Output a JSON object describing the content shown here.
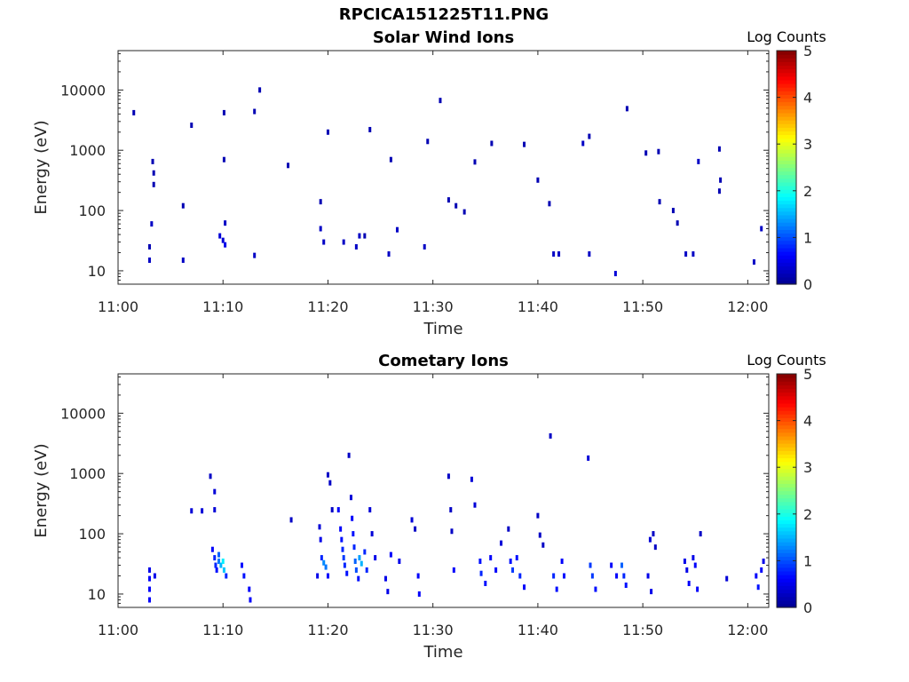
{
  "figure_title": "RPCICA151225T11.PNG",
  "colors": {
    "colormap": [
      "#00008f",
      "#0000ff",
      "#0080ff",
      "#00ffff",
      "#80ff80",
      "#ffff00",
      "#ff8000",
      "#ff0000",
      "#800000"
    ]
  },
  "chart_data": [
    {
      "type": "heatmap",
      "title": "Solar Wind Ions",
      "xlabel": "Time",
      "ylabel": "Energy (eV)",
      "y_scale": "log",
      "xlim": [
        "11:00",
        "12:02"
      ],
      "ylim": [
        6,
        45000
      ],
      "x_ticks": [
        "11:00",
        "11:10",
        "11:20",
        "11:30",
        "11:40",
        "11:50",
        "12:00"
      ],
      "y_ticks": [
        "10",
        "100",
        "1000",
        "10000"
      ],
      "colorbar": {
        "label": "Log Counts",
        "range": [
          0,
          5
        ],
        "ticks": [
          "0",
          "1",
          "2",
          "3",
          "4",
          "5"
        ]
      },
      "grid": false,
      "points": [
        [
          "11:01.5",
          4200,
          0.2
        ],
        [
          "11:03",
          25,
          0.2
        ],
        [
          "11:03",
          15,
          0.3
        ],
        [
          "11:03.3",
          650,
          0.2
        ],
        [
          "11:03.4",
          420,
          0.2
        ],
        [
          "11:03.4",
          270,
          0.2
        ],
        [
          "11:03.2",
          60,
          0.3
        ],
        [
          "11:06.2",
          15,
          0.3
        ],
        [
          "11:06.2",
          120,
          0.2
        ],
        [
          "11:07",
          2600,
          0.2
        ],
        [
          "11:09.7",
          38,
          0.4
        ],
        [
          "11:10",
          32,
          0.4
        ],
        [
          "11:10.2",
          27,
          0.5
        ],
        [
          "11:10.2",
          62,
          0.3
        ],
        [
          "11:10.1",
          4200,
          0.2
        ],
        [
          "11:10.1",
          700,
          0.2
        ],
        [
          "11:13",
          4400,
          0.2
        ],
        [
          "11:13",
          18,
          0.3
        ],
        [
          "11:13.5",
          10000,
          0.2
        ],
        [
          "11:16.2",
          560,
          0.2
        ],
        [
          "11:19.3",
          140,
          0.2
        ],
        [
          "11:19.3",
          50,
          0.3
        ],
        [
          "11:19.6",
          30,
          0.3
        ],
        [
          "11:20",
          2000,
          0.2
        ],
        [
          "11:21.5",
          30,
          0.3
        ],
        [
          "11:22.7",
          25,
          0.3
        ],
        [
          "11:23",
          38,
          0.3
        ],
        [
          "11:23.5",
          38,
          0.2
        ],
        [
          "11:24",
          2200,
          0.2
        ],
        [
          "11:25.8",
          19,
          0.3
        ],
        [
          "11:26",
          700,
          0.2
        ],
        [
          "11:26.6",
          48,
          0.3
        ],
        [
          "11:29.2",
          25,
          0.3
        ],
        [
          "11:29.5",
          1400,
          0.2
        ],
        [
          "11:30.7",
          6700,
          0.2
        ],
        [
          "11:31.5",
          150,
          0.2
        ],
        [
          "11:32.2",
          120,
          0.2
        ],
        [
          "11:33",
          95,
          0.2
        ],
        [
          "11:34",
          640,
          0.2
        ],
        [
          "11:35.6",
          1300,
          0.2
        ],
        [
          "11:38.7",
          1250,
          0.2
        ],
        [
          "11:40",
          320,
          0.2
        ],
        [
          "11:41.1",
          130,
          0.2
        ],
        [
          "11:41.5",
          19,
          0.3
        ],
        [
          "11:42",
          19,
          0.3
        ],
        [
          "11:44.3",
          1300,
          0.3
        ],
        [
          "11:44.9",
          1700,
          0.2
        ],
        [
          "11:44.9",
          19,
          0.3
        ],
        [
          "11:47.4",
          9,
          0.4
        ],
        [
          "11:48.5",
          4900,
          0.2
        ],
        [
          "11:50.3",
          900,
          0.2
        ],
        [
          "11:51.5",
          950,
          0.2
        ],
        [
          "11:51.6",
          140,
          0.2
        ],
        [
          "11:52.9",
          100,
          0.2
        ],
        [
          "11:53.3",
          62,
          0.2
        ],
        [
          "11:54.1",
          19,
          0.3
        ],
        [
          "11:54.8",
          19,
          0.3
        ],
        [
          "11:55.3",
          650,
          0.3
        ],
        [
          "11:57.3",
          1050,
          0.2
        ],
        [
          "11:57.4",
          320,
          0.2
        ],
        [
          "11:57.3",
          210,
          0.2
        ],
        [
          "12:00.6",
          14,
          0.3
        ],
        [
          "12:01.3",
          50,
          0.3
        ]
      ]
    },
    {
      "type": "heatmap",
      "title": "Cometary Ions",
      "xlabel": "Time",
      "ylabel": "Energy (eV)",
      "y_scale": "log",
      "xlim": [
        "11:00",
        "12:02"
      ],
      "ylim": [
        6,
        45000
      ],
      "x_ticks": [
        "11:00",
        "11:10",
        "11:20",
        "11:30",
        "11:40",
        "11:50",
        "12:00"
      ],
      "y_ticks": [
        "10",
        "100",
        "1000",
        "10000"
      ],
      "colorbar": {
        "label": "Log Counts",
        "range": [
          0,
          5
        ],
        "ticks": [
          "0",
          "1",
          "2",
          "3",
          "4",
          "5"
        ]
      },
      "grid": false,
      "points": [
        [
          "11:03",
          25,
          0.5
        ],
        [
          "11:03",
          18,
          0.6
        ],
        [
          "11:03",
          12,
          0.6
        ],
        [
          "11:03",
          8,
          0.6
        ],
        [
          "11:03.5",
          20,
          0.5
        ],
        [
          "11:07",
          240,
          0.4
        ],
        [
          "11:08",
          240,
          0.4
        ],
        [
          "11:08.8",
          900,
          0.3
        ],
        [
          "11:09.2",
          500,
          0.4
        ],
        [
          "11:09.2",
          250,
          0.4
        ],
        [
          "11:09",
          55,
          0.6
        ],
        [
          "11:09.2",
          40,
          0.8
        ],
        [
          "11:09.3",
          30,
          0.8
        ],
        [
          "11:09.4",
          25,
          0.7
        ],
        [
          "11:09.6",
          35,
          1.2
        ],
        [
          "11:09.8",
          30,
          1.5
        ],
        [
          "11:10",
          35,
          1.8
        ],
        [
          "11:10.1",
          25,
          1.6
        ],
        [
          "11:09.6",
          45,
          1.1
        ],
        [
          "11:10.3",
          20,
          0.8
        ],
        [
          "11:11.8",
          30,
          0.7
        ],
        [
          "11:12",
          20,
          0.7
        ],
        [
          "11:12.5",
          12,
          0.6
        ],
        [
          "11:12.6",
          8,
          0.6
        ],
        [
          "11:16.5",
          170,
          0.3
        ],
        [
          "11:19",
          20,
          0.5
        ],
        [
          "11:19.2",
          130,
          0.4
        ],
        [
          "11:19.3",
          80,
          0.5
        ],
        [
          "11:19.4",
          40,
          0.8
        ],
        [
          "11:19.6",
          33,
          1.3
        ],
        [
          "11:19.8",
          28,
          1.2
        ],
        [
          "11:20",
          950,
          0.3
        ],
        [
          "11:20.2",
          700,
          0.3
        ],
        [
          "11:20.4",
          250,
          0.3
        ],
        [
          "11:20",
          20,
          0.6
        ],
        [
          "11:21",
          250,
          0.6
        ],
        [
          "11:21.2",
          120,
          0.6
        ],
        [
          "11:21.3",
          80,
          0.7
        ],
        [
          "11:21.4",
          55,
          0.8
        ],
        [
          "11:21.5",
          40,
          0.9
        ],
        [
          "11:21.6",
          30,
          0.8
        ],
        [
          "11:21.8",
          22,
          0.7
        ],
        [
          "11:22",
          2000,
          0.3
        ],
        [
          "11:22.2",
          400,
          0.4
        ],
        [
          "11:22.3",
          180,
          0.6
        ],
        [
          "11:22.4",
          100,
          0.7
        ],
        [
          "11:22.5",
          60,
          0.8
        ],
        [
          "11:22.6",
          35,
          1.1
        ],
        [
          "11:22.7",
          25,
          1.0
        ],
        [
          "11:22.9",
          18,
          0.7
        ],
        [
          "11:23",
          40,
          1.4
        ],
        [
          "11:23.2",
          32,
          1.5
        ],
        [
          "11:23.5",
          50,
          0.8
        ],
        [
          "11:23.7",
          25,
          0.8
        ],
        [
          "11:24",
          250,
          0.4
        ],
        [
          "11:24.2",
          100,
          0.4
        ],
        [
          "11:24.5",
          40,
          0.5
        ],
        [
          "11:25.5",
          18,
          0.5
        ],
        [
          "11:25.7",
          11,
          0.5
        ],
        [
          "11:26",
          45,
          0.6
        ],
        [
          "11:26.8",
          35,
          0.5
        ],
        [
          "11:28",
          170,
          0.4
        ],
        [
          "11:28.3",
          120,
          0.3
        ],
        [
          "11:28.6",
          20,
          0.6
        ],
        [
          "11:28.7",
          10,
          0.6
        ],
        [
          "11:31.5",
          900,
          0.3
        ],
        [
          "11:31.7",
          250,
          0.3
        ],
        [
          "11:31.8",
          110,
          0.3
        ],
        [
          "11:32",
          25,
          0.6
        ],
        [
          "11:33.7",
          800,
          0.4
        ],
        [
          "11:34",
          300,
          0.4
        ],
        [
          "11:34.5",
          35,
          0.7
        ],
        [
          "11:34.6",
          22,
          0.8
        ],
        [
          "11:35",
          15,
          0.7
        ],
        [
          "11:35.5",
          40,
          0.6
        ],
        [
          "11:36",
          25,
          0.6
        ],
        [
          "11:36.5",
          70,
          0.4
        ],
        [
          "11:37.2",
          120,
          0.3
        ],
        [
          "11:37.4",
          35,
          0.7
        ],
        [
          "11:37.6",
          25,
          0.9
        ],
        [
          "11:38",
          40,
          0.7
        ],
        [
          "11:38.3",
          20,
          0.8
        ],
        [
          "11:38.7",
          13,
          0.6
        ],
        [
          "11:40",
          200,
          0.3
        ],
        [
          "11:40.2",
          95,
          0.3
        ],
        [
          "11:40.5",
          65,
          0.3
        ],
        [
          "11:41.2",
          4200,
          0.3
        ],
        [
          "11:41.5",
          20,
          0.8
        ],
        [
          "11:41.8",
          12,
          0.7
        ],
        [
          "11:42.3",
          35,
          0.6
        ],
        [
          "11:42.5",
          20,
          0.7
        ],
        [
          "11:44.8",
          1800,
          0.4
        ],
        [
          "11:45",
          30,
          0.9
        ],
        [
          "11:45.2",
          20,
          0.9
        ],
        [
          "11:45.5",
          12,
          0.7
        ],
        [
          "11:47",
          30,
          0.6
        ],
        [
          "11:47.5",
          20,
          0.6
        ],
        [
          "11:48",
          30,
          1.1
        ],
        [
          "11:48.2",
          20,
          0.8
        ],
        [
          "11:48.4",
          14,
          0.7
        ],
        [
          "11:50.5",
          20,
          0.5
        ],
        [
          "11:50.8",
          11,
          0.5
        ],
        [
          "11:50.7",
          80,
          0.4
        ],
        [
          "11:51",
          100,
          0.3
        ],
        [
          "11:51.2",
          60,
          0.3
        ],
        [
          "11:54",
          35,
          0.5
        ],
        [
          "11:54.2",
          25,
          0.5
        ],
        [
          "11:54.4",
          15,
          0.6
        ],
        [
          "11:54.8",
          40,
          0.5
        ],
        [
          "11:55",
          30,
          0.6
        ],
        [
          "11:55.2",
          12,
          0.6
        ],
        [
          "11:55.5",
          100,
          0.3
        ],
        [
          "11:58",
          18,
          0.4
        ],
        [
          "12:00.8",
          20,
          0.6
        ],
        [
          "12:01",
          13,
          0.7
        ],
        [
          "12:01.3",
          25,
          0.6
        ],
        [
          "12:01.5",
          35,
          0.5
        ]
      ]
    }
  ]
}
